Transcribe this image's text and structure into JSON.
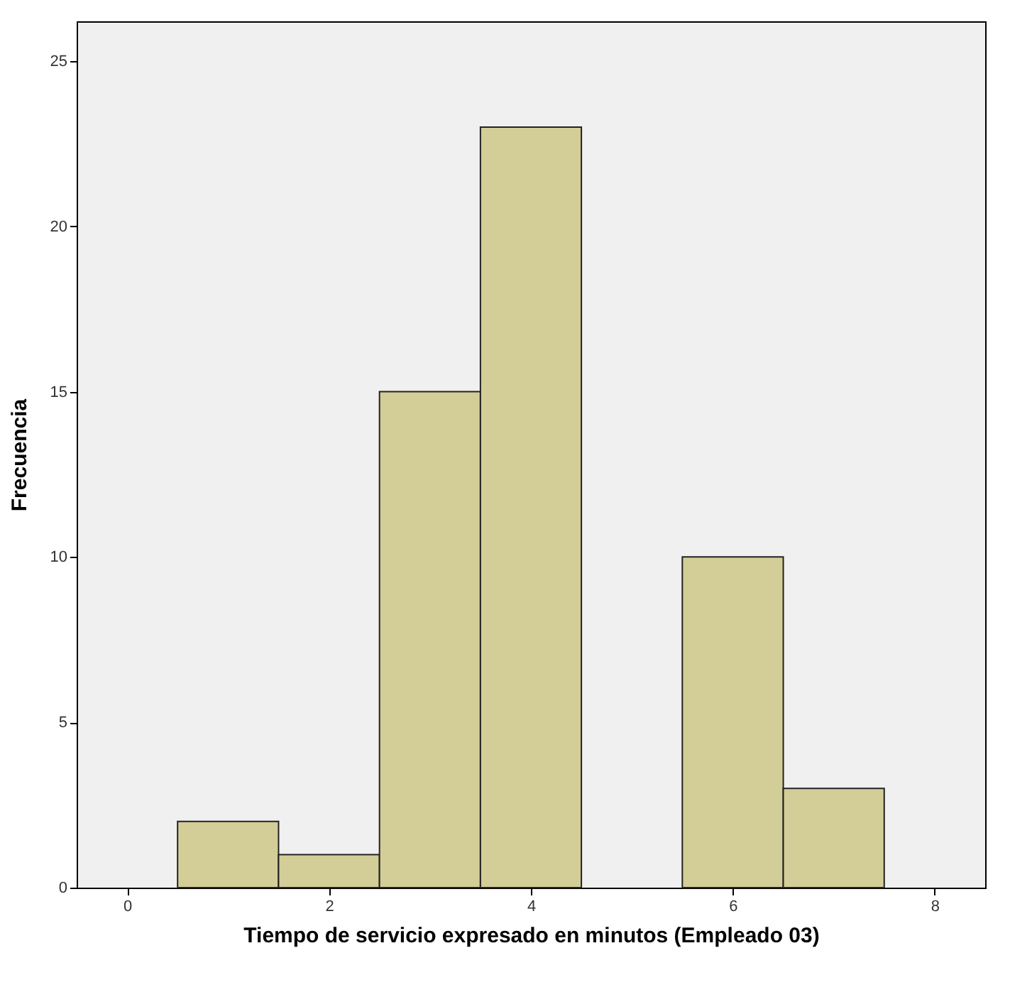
{
  "chart_data": {
    "type": "histogram",
    "xlabel": "Tiempo de servicio expresado en minutos (Empleado 03)",
    "ylabel": "Frecuencia",
    "bins": [
      0.5,
      1.5,
      2.5,
      3.5,
      4.5,
      5.5,
      6.5,
      7.5
    ],
    "values": [
      2,
      1,
      15,
      23,
      0,
      10,
      3
    ],
    "color": "#d3ce97",
    "xlim": [
      -0.5,
      8.5
    ],
    "xticks": [
      0,
      2,
      4,
      6,
      8
    ],
    "ylim": [
      0,
      26.2
    ],
    "yticks": [
      0,
      5,
      10,
      15,
      20,
      25
    ],
    "grid": false
  }
}
